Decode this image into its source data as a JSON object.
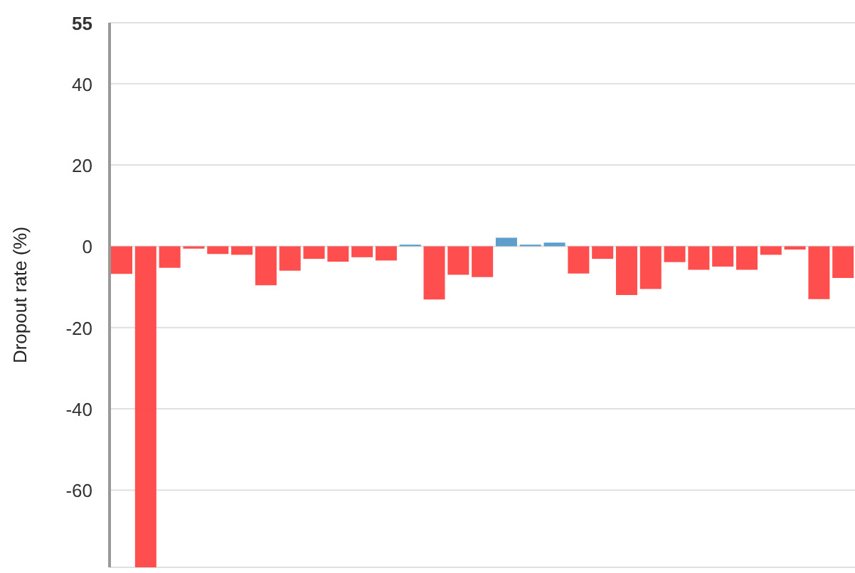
{
  "chart_data": {
    "type": "bar",
    "ylabel": "Dropout rate (%)",
    "categories": [
      null,
      null,
      null,
      null,
      null,
      null,
      null,
      null,
      null,
      null,
      null,
      null,
      null,
      null,
      null,
      null,
      null,
      null,
      null,
      null,
      null,
      null,
      null,
      null,
      null,
      null,
      null,
      null,
      null,
      null,
      null
    ],
    "values": [
      -6.8,
      -79,
      -5.3,
      -0.6,
      -1.9,
      -2.1,
      -9.6,
      -6.0,
      -3.1,
      -3.8,
      -2.7,
      -3.5,
      0.4,
      -13.1,
      -7.0,
      -7.6,
      2.1,
      0.4,
      0.9,
      -6.7,
      -3.1,
      -12.0,
      -10.5,
      -3.9,
      -5.8,
      -5.0,
      -5.8,
      -2.1,
      -0.8,
      -13.0,
      -7.8
    ],
    "colors": [
      "#ff4444",
      "#ff4444",
      "#ff4444",
      "#ff4444",
      "#ff4444",
      "#ff4444",
      "#ff4444",
      "#ff4444",
      "#ff4444",
      "#ff4444",
      "#ff4444",
      "#ff4444",
      "#5499c7",
      "#ff4444",
      "#ff4444",
      "#ff4444",
      "#5499c7",
      "#5499c7",
      "#5499c7",
      "#ff4444",
      "#ff4444",
      "#ff4444",
      "#ff4444",
      "#ff4444",
      "#ff4444",
      "#ff4444",
      "#ff4444",
      "#ff4444",
      "#ff4444",
      "#ff4444",
      "#ff4444"
    ],
    "ylim": [
      -79,
      55
    ],
    "yticks": [
      55,
      40,
      20,
      0,
      -20,
      -40,
      -60
    ],
    "grid": "y",
    "tick_labels": "y"
  }
}
